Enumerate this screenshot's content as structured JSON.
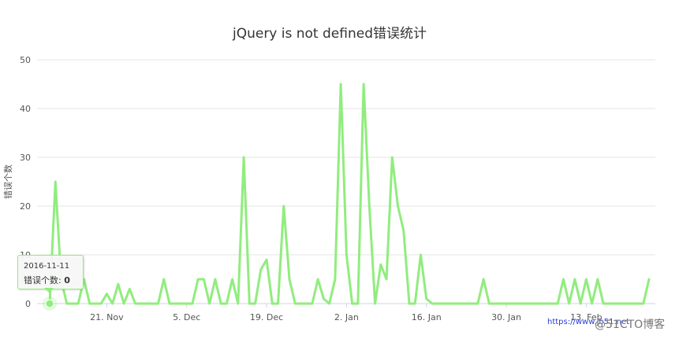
{
  "chart_data": {
    "type": "line",
    "title": "jQuery is not defined错误统计",
    "ylabel": "错误个数",
    "xlabel": "",
    "ylim": [
      0,
      50
    ],
    "yticks": [
      0,
      10,
      20,
      30,
      40,
      50
    ],
    "xticks": [
      "21. Nov",
      "5. Dec",
      "19. Dec",
      "2. Jan",
      "16. Jan",
      "30. Jan",
      "13. Feb"
    ],
    "grid": true,
    "colors": {
      "series": "#90ed7d",
      "grid": "#e6e6e6",
      "axis": "#ccd6eb"
    },
    "series": [
      {
        "values": [
          0,
          25,
          5,
          0,
          0,
          0,
          5,
          0,
          0,
          0,
          2,
          0,
          4,
          0,
          3,
          0,
          0,
          0,
          0,
          0,
          5,
          0,
          0,
          0,
          0,
          0,
          5,
          5,
          0,
          5,
          0,
          0,
          5,
          0,
          30,
          0,
          0,
          7,
          9,
          0,
          0,
          20,
          5,
          0,
          0,
          0,
          0,
          5,
          1,
          0,
          5,
          45,
          10,
          0,
          0,
          45,
          20,
          0,
          8,
          5,
          30,
          20,
          15,
          0,
          0,
          10,
          1,
          0,
          0,
          0,
          0,
          0,
          0,
          0,
          0,
          0,
          5,
          0,
          0,
          0,
          0,
          0,
          0,
          0,
          0,
          0,
          0,
          0,
          0,
          0,
          5,
          0,
          5,
          0,
          5,
          0,
          5,
          0,
          0,
          0,
          0,
          0,
          0,
          0,
          0,
          5
        ]
      }
    ]
  },
  "tooltip": {
    "date": "2016-11-11",
    "label": "错误个数: ",
    "value": "0"
  },
  "watermark": {
    "url": "https://www.jb51.net",
    "brand": "@51CTO博客"
  }
}
